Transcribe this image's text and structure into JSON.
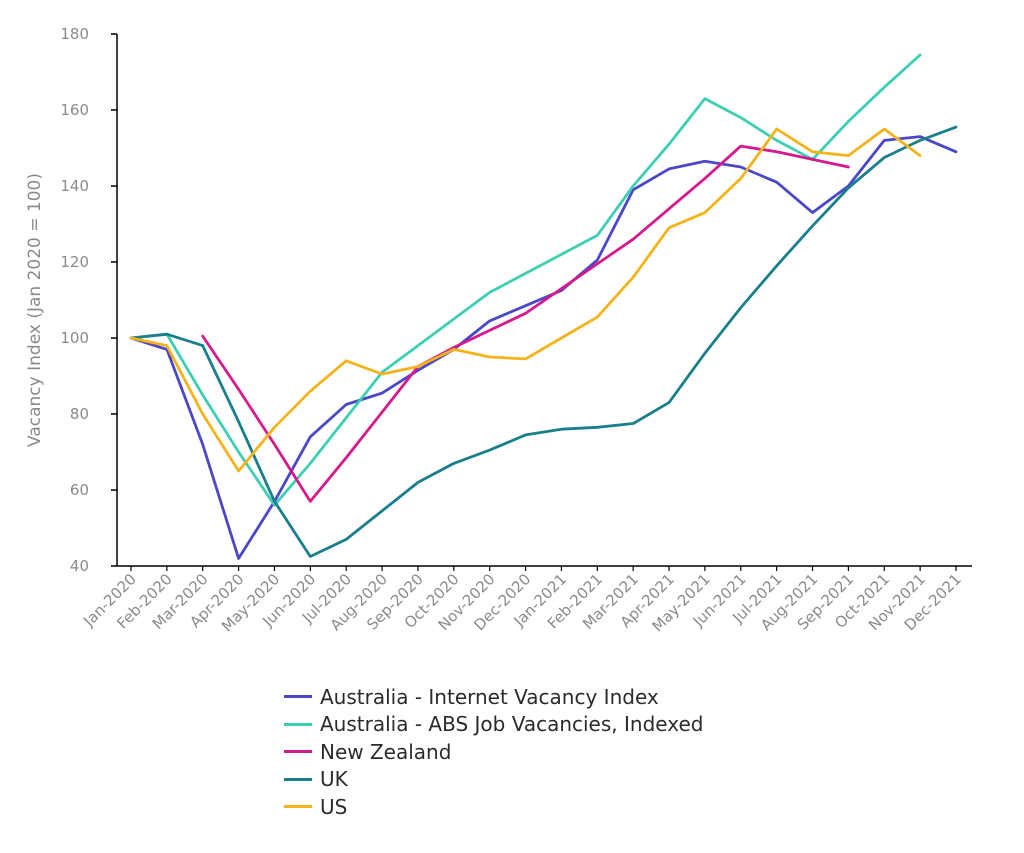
{
  "chart_data": {
    "type": "line",
    "title": "",
    "xlabel": "",
    "ylabel": "Vacancy Index (Jan 2020 = 100)",
    "ylim": [
      40,
      180
    ],
    "yticks": [
      40,
      60,
      80,
      100,
      120,
      140,
      160,
      180
    ],
    "grid": false,
    "legend_position": "bottom",
    "categories": [
      "Jan-2020",
      "Feb-2020",
      "Mar-2020",
      "Apr-2020",
      "May-2020",
      "Jun-2020",
      "Jul-2020",
      "Aug-2020",
      "Sep-2020",
      "Oct-2020",
      "Nov-2020",
      "Dec-2020",
      "Jan-2021",
      "Feb-2021",
      "Mar-2021",
      "Apr-2021",
      "May-2021",
      "Jun-2021",
      "Jul-2021",
      "Aug-2021",
      "Sep-2021",
      "Oct-2021",
      "Nov-2021",
      "Dec-2021"
    ],
    "series": [
      {
        "name": "Australia - Internet Vacancy Index",
        "color": "#4a47c8",
        "values": [
          100,
          97,
          72,
          42,
          57,
          74,
          82.5,
          85.5,
          91.5,
          97,
          104.5,
          108.5,
          112.5,
          120.5,
          139,
          144.5,
          146.5,
          145,
          141,
          133,
          140,
          152,
          153,
          149
        ]
      },
      {
        "name": "Australia - ABS Job Vacancies, Indexed",
        "color": "#3ecfb3",
        "values": [
          100,
          101,
          85,
          70,
          56,
          67,
          79,
          91,
          98,
          105,
          112,
          117,
          122,
          127,
          140,
          151,
          163,
          158,
          152,
          147,
          157,
          166,
          174.5,
          null
        ]
      },
      {
        "name": "New Zealand",
        "color": "#d6198d",
        "values": [
          null,
          null,
          100.5,
          86.5,
          72,
          57,
          68.5,
          80.5,
          92.5,
          97.5,
          102,
          106.5,
          113,
          119.5,
          126,
          134,
          142,
          150.5,
          149,
          147,
          145,
          null,
          null,
          null
        ]
      },
      {
        "name": "UK",
        "color": "#197f8c",
        "values": [
          100,
          101,
          98,
          78,
          57,
          42.5,
          47,
          54.5,
          62,
          67,
          70.5,
          74.5,
          76,
          76.5,
          77.5,
          83,
          96,
          108,
          119,
          129.5,
          139.5,
          147.5,
          152,
          155.5
        ]
      },
      {
        "name": "US",
        "color": "#f5b31a",
        "values": [
          100,
          98,
          80,
          65,
          76.5,
          86,
          94,
          90.5,
          92.5,
          97,
          95,
          94.5,
          100,
          105.5,
          116,
          129,
          133,
          142,
          155,
          149,
          148,
          155,
          148,
          null
        ]
      }
    ]
  }
}
